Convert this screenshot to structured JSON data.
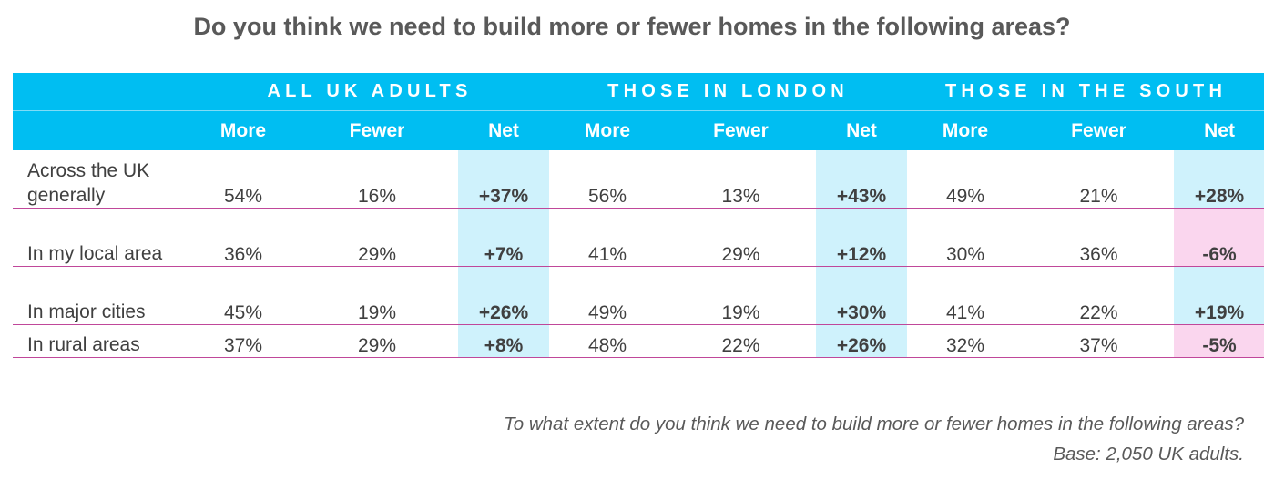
{
  "title": "Do you think we need to build more or fewer homes in the following areas?",
  "groups": [
    "ALL UK ADULTS",
    "THOSE IN LONDON",
    "THOSE IN THE SOUTH"
  ],
  "subheaders": [
    "More",
    "Fewer",
    "Net"
  ],
  "rows": [
    {
      "label": "Across the UK generally",
      "cells": [
        "54%",
        "16%",
        "+37%",
        "56%",
        "13%",
        "+43%",
        "49%",
        "21%",
        "+28%"
      ]
    },
    {
      "label": "In my local area",
      "cells": [
        "36%",
        "29%",
        "+7%",
        "41%",
        "29%",
        "+12%",
        "30%",
        "36%",
        "-6%"
      ]
    },
    {
      "label": "In major cities",
      "cells": [
        "45%",
        "19%",
        "+26%",
        "49%",
        "19%",
        "+30%",
        "41%",
        "22%",
        "+19%"
      ]
    },
    {
      "label": "In rural areas",
      "cells": [
        "37%",
        "29%",
        "+8%",
        "48%",
        "22%",
        "+26%",
        "32%",
        "37%",
        "-5%"
      ]
    }
  ],
  "footnote_question": "To what extent do you think we need to build more or fewer homes in the following areas?",
  "footnote_base": "Base: 2,050 UK adults.",
  "colors": {
    "header": "#00bef2",
    "net_positive": "#cff2fc",
    "net_negative": "#fad6ee",
    "row_divider": "#c0479a",
    "text": "#404040"
  },
  "chart_data": {
    "type": "table",
    "title": "Do you think we need to build more or fewer homes in the following areas?",
    "column_groups": [
      "ALL UK ADULTS",
      "THOSE IN LONDON",
      "THOSE IN THE SOUTH"
    ],
    "columns": [
      "More",
      "Fewer",
      "Net"
    ],
    "row_labels": [
      "Across the UK generally",
      "In my local area",
      "In major cities",
      "In rural areas"
    ],
    "values": [
      [
        54,
        16,
        37,
        56,
        13,
        43,
        49,
        21,
        28
      ],
      [
        36,
        29,
        7,
        41,
        29,
        12,
        30,
        36,
        -6
      ],
      [
        45,
        19,
        26,
        49,
        19,
        30,
        41,
        22,
        19
      ],
      [
        37,
        29,
        8,
        48,
        22,
        26,
        32,
        37,
        -5
      ]
    ]
  }
}
